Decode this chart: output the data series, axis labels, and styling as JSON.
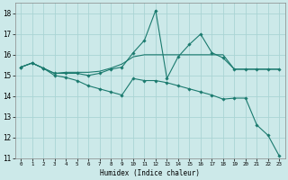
{
  "xlabel": "Humidex (Indice chaleur)",
  "bg_color": "#cce9e9",
  "grid_color": "#aad4d4",
  "line_color": "#1a7a6e",
  "xlim": [
    -0.5,
    23.5
  ],
  "ylim": [
    11,
    18.5
  ],
  "yticks": [
    11,
    12,
    13,
    14,
    15,
    16,
    17,
    18
  ],
  "xticks": [
    0,
    1,
    2,
    3,
    4,
    5,
    6,
    7,
    8,
    9,
    10,
    11,
    12,
    13,
    14,
    15,
    16,
    17,
    18,
    19,
    20,
    21,
    22,
    23
  ],
  "line1_x": [
    0,
    1,
    2,
    3,
    4,
    5,
    6,
    7,
    8,
    9,
    10,
    11,
    12,
    13,
    14,
    15,
    16,
    17,
    18,
    19,
    20,
    21,
    22,
    23
  ],
  "line1_y": [
    15.4,
    15.6,
    15.35,
    15.1,
    15.1,
    15.1,
    15.0,
    15.1,
    15.3,
    15.4,
    16.1,
    16.7,
    18.15,
    14.85,
    15.9,
    16.5,
    17.0,
    16.1,
    15.85,
    15.3,
    15.3,
    15.3,
    15.3,
    15.3
  ],
  "line2_x": [
    0,
    1,
    2,
    3,
    4,
    5,
    6,
    7,
    8,
    9,
    10,
    11,
    12,
    13,
    14,
    15,
    16,
    17,
    18,
    19,
    20,
    21,
    22,
    23
  ],
  "line2_y": [
    15.4,
    15.6,
    15.35,
    15.1,
    15.15,
    15.15,
    15.15,
    15.2,
    15.35,
    15.55,
    15.9,
    16.0,
    16.0,
    16.0,
    16.0,
    16.0,
    16.0,
    16.0,
    16.0,
    15.3,
    15.3,
    15.3,
    15.3,
    15.3
  ],
  "line3_x": [
    0,
    1,
    2,
    3,
    4,
    5,
    6,
    7,
    8,
    9,
    10,
    11,
    12,
    13,
    14,
    15,
    16,
    17,
    18,
    19,
    20,
    21,
    22,
    23
  ],
  "line3_y": [
    15.4,
    15.6,
    15.35,
    15.0,
    14.9,
    14.75,
    14.5,
    14.35,
    14.2,
    14.05,
    14.85,
    14.75,
    14.75,
    14.65,
    14.5,
    14.35,
    14.2,
    14.05,
    13.85,
    13.9,
    13.9,
    12.6,
    12.1,
    11.1
  ]
}
